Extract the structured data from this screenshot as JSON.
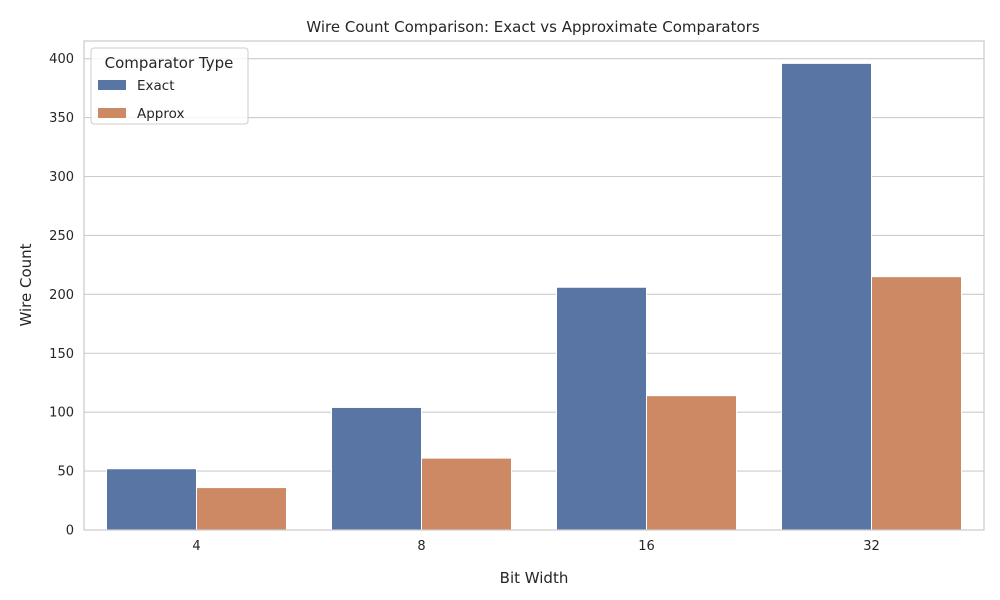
{
  "chart_data": {
    "type": "bar",
    "title": "Wire Count Comparison: Exact vs Approximate Comparators",
    "xlabel": "Bit Width",
    "ylabel": "Wire Count",
    "categories": [
      "4",
      "8",
      "16",
      "32"
    ],
    "series": [
      {
        "name": "Exact",
        "values": [
          52,
          104,
          206,
          396
        ],
        "color": "#5875a4"
      },
      {
        "name": "Approx",
        "values": [
          36,
          61,
          114,
          215
        ],
        "color": "#cc8963"
      }
    ],
    "ylim": [
      0,
      415
    ],
    "yticks": [
      0,
      50,
      100,
      150,
      200,
      250,
      300,
      350,
      400
    ],
    "grid": true,
    "legend": {
      "title": "Comparator Type",
      "position": "top-left"
    }
  }
}
